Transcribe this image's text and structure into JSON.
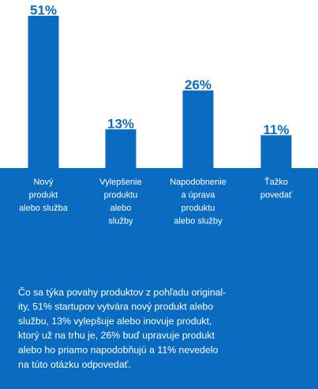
{
  "chart_data": {
    "type": "bar",
    "categories": [
      [
        "Nový",
        "produkt",
        "alebo služba"
      ],
      [
        "Vylepšenie",
        "produktu",
        "alebo",
        "služby"
      ],
      [
        "Napodobnenie",
        "a úprava",
        "produktu",
        "alebo služby"
      ],
      [
        "Ťažko",
        "povedať"
      ]
    ],
    "values": [
      51,
      13,
      26,
      11
    ],
    "value_labels": [
      "51%",
      "13%",
      "26%",
      "11%"
    ],
    "color": "#0a6cc1"
  },
  "caption": {
    "lines": [
      "Čo sa týka povahy produktov z pohľadu original-",
      "ity, 51% startupov vytvára nový produkt alebo",
      "službu, 13% vylepšuje alebo inovuje produkt,",
      "ktorý už na trhu je, 26% buď upravuje produkt",
      "alebo ho priamo napodobňujú a 11% nevedelo",
      "na túto otázku odpovedať."
    ]
  }
}
